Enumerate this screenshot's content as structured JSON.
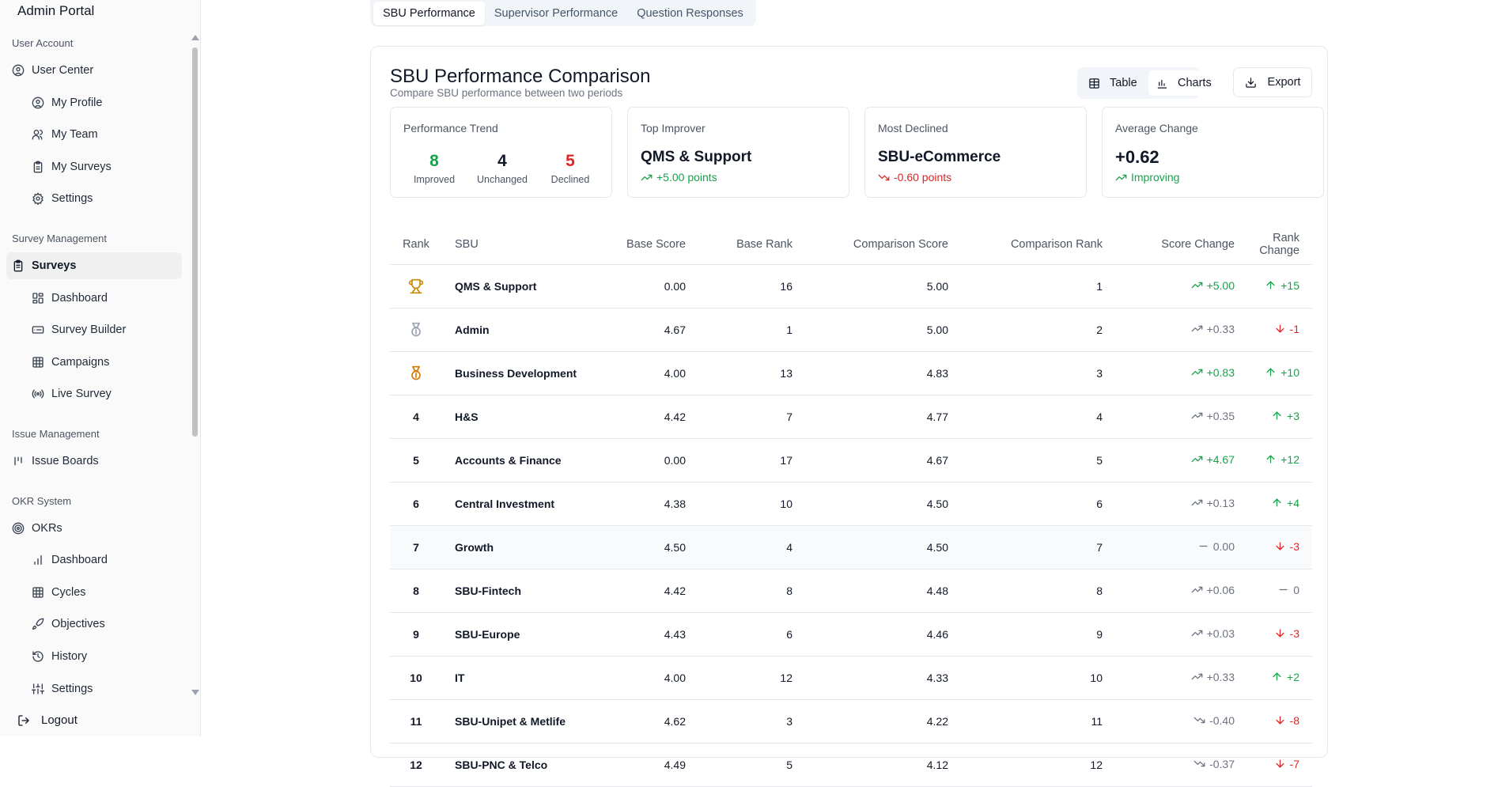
{
  "app": {
    "title": "Admin Portal"
  },
  "sidebar": {
    "sections": [
      {
        "label": "User Account",
        "items": [
          {
            "label": "User Center",
            "icon": "user-circle-icon",
            "level": "top"
          },
          {
            "label": "My Profile",
            "icon": "user-circle-icon",
            "level": "sub"
          },
          {
            "label": "My Team",
            "icon": "users-icon",
            "level": "sub"
          },
          {
            "label": "My Surveys",
            "icon": "clipboard-icon",
            "level": "sub"
          },
          {
            "label": "Settings",
            "icon": "gear-icon",
            "level": "sub"
          }
        ]
      },
      {
        "label": "Survey Management",
        "items": [
          {
            "label": "Surveys",
            "icon": "clipboard-list-icon",
            "level": "top",
            "active": true
          },
          {
            "label": "Dashboard",
            "icon": "dashboard-icon",
            "level": "sub"
          },
          {
            "label": "Survey Builder",
            "icon": "builder-icon",
            "level": "sub"
          },
          {
            "label": "Campaigns",
            "icon": "grid-icon",
            "level": "sub"
          },
          {
            "label": "Live Survey",
            "icon": "broadcast-icon",
            "level": "sub"
          }
        ]
      },
      {
        "label": "Issue Management",
        "items": [
          {
            "label": "Issue Boards",
            "icon": "kanban-icon",
            "level": "top"
          }
        ]
      },
      {
        "label": "OKR System",
        "items": [
          {
            "label": "OKRs",
            "icon": "target-icon",
            "level": "top"
          },
          {
            "label": "Dashboard",
            "icon": "bar-chart-icon",
            "level": "sub"
          },
          {
            "label": "Cycles",
            "icon": "grid-icon",
            "level": "sub"
          },
          {
            "label": "Objectives",
            "icon": "rocket-icon",
            "level": "sub"
          },
          {
            "label": "History",
            "icon": "history-icon",
            "level": "sub"
          },
          {
            "label": "Settings",
            "icon": "sliders-icon",
            "level": "sub"
          }
        ]
      }
    ],
    "logout_label": "Logout"
  },
  "tabs": [
    {
      "label": "SBU Performance",
      "active": true
    },
    {
      "label": "Supervisor Performance",
      "active": false
    },
    {
      "label": "Question Responses",
      "active": false
    }
  ],
  "card": {
    "title": "SBU Performance Comparison",
    "subtitle": "Compare SBU performance between two periods",
    "view_toggle": {
      "table_label": "Table",
      "charts_label": "Charts",
      "selected": "Table"
    },
    "export_label": "Export"
  },
  "stats": {
    "trend": {
      "label": "Performance Trend",
      "improved": "8",
      "improved_label": "Improved",
      "unchanged": "4",
      "unchanged_label": "Unchanged",
      "declined": "5",
      "declined_label": "Declined"
    },
    "top_improver": {
      "label": "Top Improver",
      "name": "QMS & Support",
      "change": "+5.00 points"
    },
    "most_declined": {
      "label": "Most Declined",
      "name": "SBU-eCommerce",
      "change": "-0.60 points"
    },
    "average_change": {
      "label": "Average Change",
      "value": "+0.62",
      "status": "Improving"
    }
  },
  "colors": {
    "positive": "#16a34a",
    "negative": "#dc2626",
    "neutral": "#6b7280",
    "gold": "#ca8a04",
    "silver": "#9ca3af",
    "bronze": "#d97706"
  },
  "table": {
    "headers": [
      "Rank",
      "SBU",
      "Base Score",
      "Base Rank",
      "Comparison Score",
      "Comparison Rank",
      "Score Change",
      "Rank Change"
    ],
    "rows": [
      {
        "rank": "1",
        "medal": "gold",
        "sbu": "QMS & Support",
        "base_score": "0.00",
        "base_rank": "16",
        "comp_score": "5.00",
        "comp_rank": "1",
        "score_change": "+5.00",
        "score_trend": "up-strong",
        "rank_change": "+15",
        "rank_trend": "up"
      },
      {
        "rank": "2",
        "medal": "silver",
        "sbu": "Admin",
        "base_score": "4.67",
        "base_rank": "1",
        "comp_score": "5.00",
        "comp_rank": "2",
        "score_change": "+0.33",
        "score_trend": "up",
        "rank_change": "-1",
        "rank_trend": "down"
      },
      {
        "rank": "3",
        "medal": "bronze",
        "sbu": "Business Development",
        "base_score": "4.00",
        "base_rank": "13",
        "comp_score": "4.83",
        "comp_rank": "3",
        "score_change": "+0.83",
        "score_trend": "up-strong",
        "rank_change": "+10",
        "rank_trend": "up"
      },
      {
        "rank": "4",
        "sbu": "H&S",
        "base_score": "4.42",
        "base_rank": "7",
        "comp_score": "4.77",
        "comp_rank": "4",
        "score_change": "+0.35",
        "score_trend": "up",
        "rank_change": "+3",
        "rank_trend": "up"
      },
      {
        "rank": "5",
        "sbu": "Accounts & Finance",
        "base_score": "0.00",
        "base_rank": "17",
        "comp_score": "4.67",
        "comp_rank": "5",
        "score_change": "+4.67",
        "score_trend": "up-strong",
        "rank_change": "+12",
        "rank_trend": "up"
      },
      {
        "rank": "6",
        "sbu": "Central Investment",
        "base_score": "4.38",
        "base_rank": "10",
        "comp_score": "4.50",
        "comp_rank": "6",
        "score_change": "+0.13",
        "score_trend": "up",
        "rank_change": "+4",
        "rank_trend": "up"
      },
      {
        "rank": "7",
        "sbu": "Growth",
        "base_score": "4.50",
        "base_rank": "4",
        "comp_score": "4.50",
        "comp_rank": "7",
        "score_change": "0.00",
        "score_trend": "flat",
        "rank_change": "-3",
        "rank_trend": "down",
        "highlighted": true
      },
      {
        "rank": "8",
        "sbu": "SBU-Fintech",
        "base_score": "4.42",
        "base_rank": "8",
        "comp_score": "4.48",
        "comp_rank": "8",
        "score_change": "+0.06",
        "score_trend": "up",
        "rank_change": "0",
        "rank_trend": "flat"
      },
      {
        "rank": "9",
        "sbu": "SBU-Europe",
        "base_score": "4.43",
        "base_rank": "6",
        "comp_score": "4.46",
        "comp_rank": "9",
        "score_change": "+0.03",
        "score_trend": "up",
        "rank_change": "-3",
        "rank_trend": "down"
      },
      {
        "rank": "10",
        "sbu": "IT",
        "base_score": "4.00",
        "base_rank": "12",
        "comp_score": "4.33",
        "comp_rank": "10",
        "score_change": "+0.33",
        "score_trend": "up",
        "rank_change": "+2",
        "rank_trend": "up"
      },
      {
        "rank": "11",
        "sbu": "SBU-Unipet & Metlife",
        "base_score": "4.62",
        "base_rank": "3",
        "comp_score": "4.22",
        "comp_rank": "11",
        "score_change": "-0.40",
        "score_trend": "down",
        "rank_change": "-8",
        "rank_trend": "down"
      },
      {
        "rank": "12",
        "sbu": "SBU-PNC & Telco",
        "base_score": "4.49",
        "base_rank": "5",
        "comp_score": "4.12",
        "comp_rank": "12",
        "score_change": "-0.37",
        "score_trend": "down",
        "rank_change": "-7",
        "rank_trend": "down"
      }
    ]
  }
}
